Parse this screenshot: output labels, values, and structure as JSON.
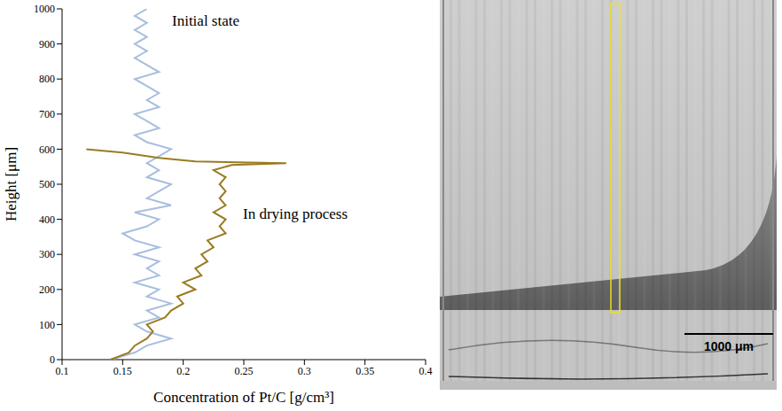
{
  "chart_data": {
    "type": "line",
    "xlabel": "Concentration of Pt/C [g/cm³]",
    "ylabel": "Height [μm]",
    "xlim": [
      0.1,
      0.4
    ],
    "xticks": [
      0.1,
      0.15,
      0.2,
      0.25,
      0.3,
      0.35,
      0.4
    ],
    "ylim": [
      0,
      1000
    ],
    "yticks": [
      0,
      100,
      200,
      300,
      400,
      500,
      600,
      700,
      800,
      900,
      1000
    ],
    "grid": false,
    "series": [
      {
        "name": "Initial state",
        "color": "#a8bedf",
        "x": [
          0.14,
          0.16,
          0.17,
          0.19,
          0.17,
          0.16,
          0.18,
          0.17,
          0.19,
          0.17,
          0.18,
          0.16,
          0.18,
          0.17,
          0.18,
          0.16,
          0.18,
          0.16,
          0.15,
          0.17,
          0.18,
          0.16,
          0.19,
          0.17,
          0.18,
          0.19,
          0.17,
          0.18,
          0.17,
          0.18,
          0.19,
          0.17,
          0.16,
          0.18,
          0.17,
          0.16,
          0.18,
          0.17,
          0.18,
          0.17,
          0.16,
          0.18,
          0.17,
          0.16,
          0.17,
          0.16,
          0.17,
          0.16,
          0.17,
          0.16,
          0.17
        ],
        "y": [
          0,
          20,
          40,
          60,
          80,
          100,
          120,
          140,
          160,
          180,
          200,
          220,
          240,
          260,
          280,
          300,
          320,
          340,
          360,
          380,
          400,
          420,
          440,
          460,
          480,
          500,
          520,
          540,
          560,
          580,
          600,
          620,
          640,
          660,
          680,
          700,
          720,
          740,
          760,
          780,
          800,
          820,
          840,
          860,
          880,
          900,
          920,
          940,
          960,
          980,
          1000
        ]
      },
      {
        "name": "In drying process",
        "color": "#9b7b22",
        "x": [
          0.14,
          0.155,
          0.16,
          0.17,
          0.175,
          0.17,
          0.185,
          0.19,
          0.2,
          0.195,
          0.21,
          0.2,
          0.215,
          0.21,
          0.22,
          0.215,
          0.225,
          0.22,
          0.235,
          0.23,
          0.235,
          0.225,
          0.235,
          0.23,
          0.235,
          0.23,
          0.235,
          0.225,
          0.24,
          0.285,
          0.21,
          0.18,
          0.15,
          0.12
        ],
        "y": [
          0,
          20,
          40,
          60,
          80,
          100,
          120,
          140,
          160,
          180,
          200,
          220,
          240,
          260,
          280,
          300,
          320,
          340,
          360,
          380,
          400,
          420,
          440,
          460,
          480,
          500,
          520,
          540,
          555,
          560,
          565,
          575,
          590,
          600
        ]
      }
    ]
  },
  "image_panel": {
    "scale_bar": "1000 μm"
  }
}
